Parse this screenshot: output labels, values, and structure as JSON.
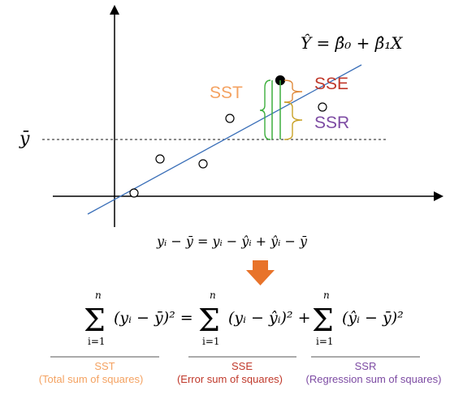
{
  "colors": {
    "sst": "#f4a261",
    "sse": "#c0392b",
    "ssr": "#7d4ba3",
    "regression_line": "#3a6fb8",
    "green_bar": "#3cae3c",
    "orange_brace": "#e08a3c",
    "gold_brace": "#c9a227",
    "arrow": "#e8732a",
    "axis": "#000000"
  },
  "plot": {
    "regression_equation": "Ŷ = β̂₀ + β̂₁X",
    "ybar_label": "ȳ",
    "labels": {
      "sst": "SST",
      "sse": "SSE",
      "ssr": "SSR"
    }
  },
  "equations": {
    "identity": "yᵢ − ȳ  =  yᵢ − ŷᵢ  +  ŷᵢ − ȳ",
    "sum_upper": "n",
    "sum_lower": "i=1",
    "term_sst": "(yᵢ − ȳ)² =",
    "term_sse": "(yᵢ − ŷᵢ)² +",
    "term_ssr": "(ŷᵢ − ȳ)²"
  },
  "legend": {
    "sst_name": "SST",
    "sst_desc": "(Total sum of squares)",
    "sse_name": "SSE",
    "sse_desc": "(Error sum of squares)",
    "ssr_name": "SSR",
    "ssr_desc": "(Regression sum of squares)"
  }
}
